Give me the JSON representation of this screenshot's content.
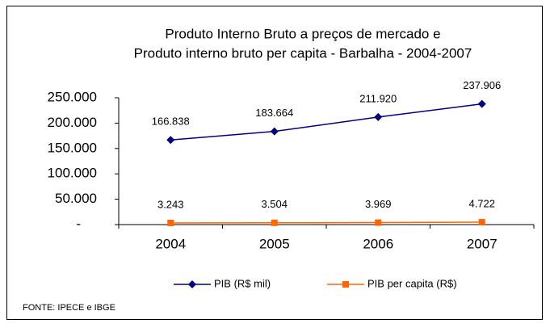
{
  "chart_data": {
    "type": "line",
    "title": "Produto Interno Bruto a preços de mercado  e",
    "subtitle": "Produto interno bruto per capita -  Barbalha - 2004-2007",
    "categories": [
      "2004",
      "2005",
      "2006",
      "2007"
    ],
    "series": [
      {
        "name": "PIB (R$ mil)",
        "color": "#000080",
        "marker": "diamond",
        "values": [
          166838,
          183664,
          211920,
          237906
        ],
        "value_labels": [
          "166.838",
          "183.664",
          "211.920",
          "237.906"
        ]
      },
      {
        "name": "PIB per capita (R$)",
        "color": "#ff6600",
        "marker": "square",
        "values": [
          3243,
          3504,
          3969,
          4722
        ],
        "value_labels": [
          "3.243",
          "3.504",
          "3.969",
          "4.722"
        ]
      }
    ],
    "ylim": [
      0,
      250000
    ],
    "yticks": [
      {
        "value": 0,
        "label": "-"
      },
      {
        "value": 50000,
        "label": "50.000"
      },
      {
        "value": 100000,
        "label": "100.000"
      },
      {
        "value": 150000,
        "label": "150.000"
      },
      {
        "value": 200000,
        "label": "200.000"
      },
      {
        "value": 250000,
        "label": "250.000"
      }
    ],
    "grid": false,
    "legend": "bottom",
    "note": "FONTE: IPECE e IBGE"
  }
}
